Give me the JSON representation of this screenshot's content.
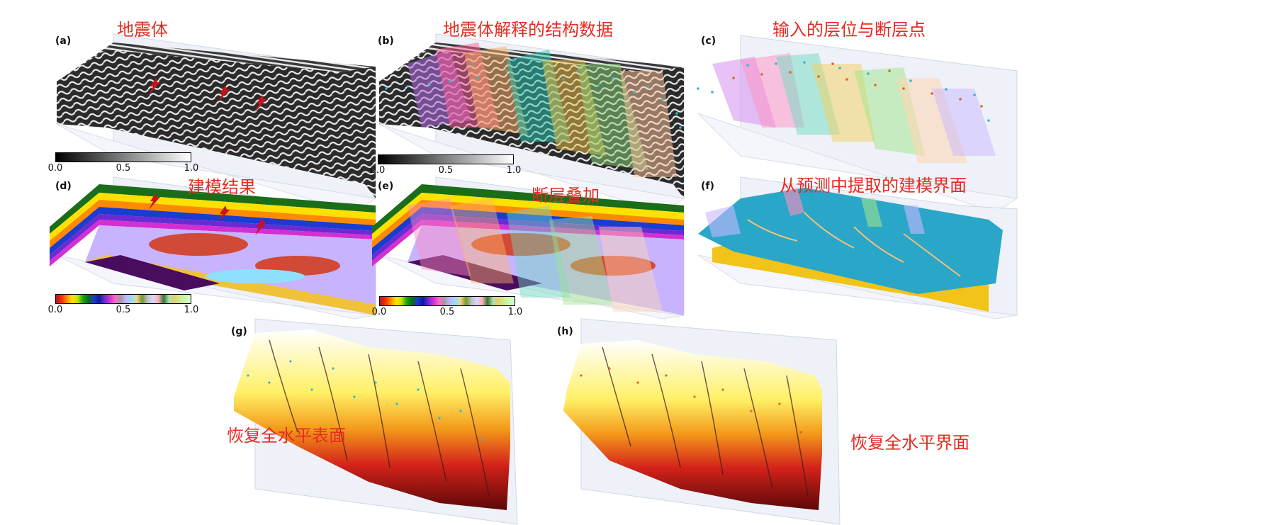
{
  "panels": {
    "a": {
      "letter": "(a)",
      "title": "地震体"
    },
    "b": {
      "letter": "(b)",
      "title": "地震体解释的结构数据"
    },
    "c": {
      "letter": "(c)",
      "title": "输入的层位与断层点"
    },
    "d": {
      "letter": "(d)",
      "title": "建模结果"
    },
    "e": {
      "letter": "(e)",
      "title": "断层叠加"
    },
    "f": {
      "letter": "(f)",
      "title": "从预测中提取的建模界面"
    },
    "g": {
      "letter": "(g)",
      "title": "恢复全水平表面"
    },
    "h": {
      "letter": "(h)",
      "title": "恢复全水平界面"
    }
  },
  "colorbars": {
    "ticks": [
      "0.0",
      "0.5",
      "1.0"
    ]
  },
  "colors": {
    "title_red": "#e52b21",
    "fault_cyan": "#33b5d4",
    "horizon_orange": "#e0622a",
    "surface_blue": "#2aa6c8",
    "surface_yellow": "#f2c318"
  }
}
